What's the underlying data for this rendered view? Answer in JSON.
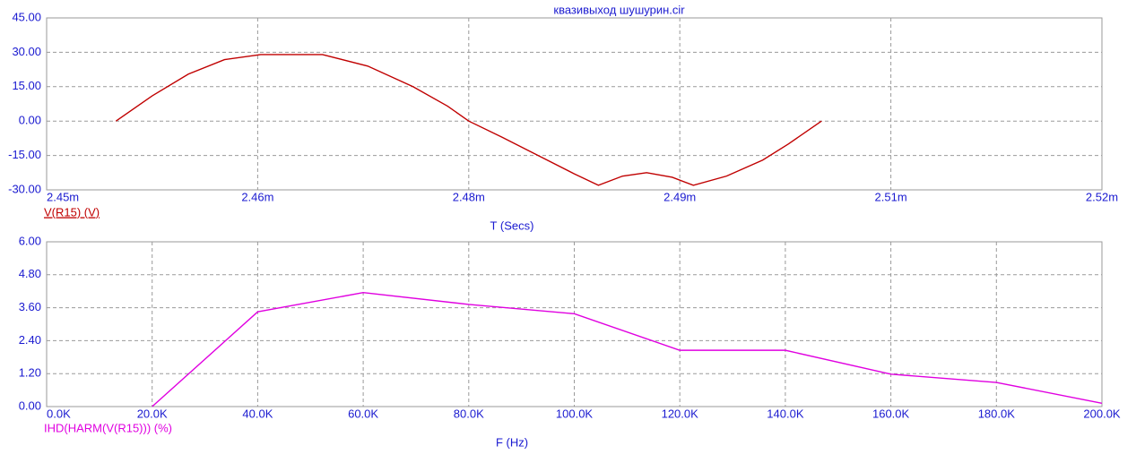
{
  "chart_data": [
    {
      "type": "line",
      "title": "квазивыход шушурин.cir",
      "x_label": "T (Secs)",
      "x": [
        0.0024546,
        0.002457,
        0.0024594,
        0.0024618,
        0.0024642,
        0.0024683,
        0.0024713,
        0.0024743,
        0.0024766,
        0.002478,
        0.0024802,
        0.0024826,
        0.002485,
        0.0024866,
        0.0024882,
        0.0024898,
        0.0024915,
        0.0024929,
        0.0024951,
        0.0024975,
        0.0024992,
        0.0025014
      ],
      "series": [
        {
          "name": "V(R15) (V)",
          "color": "#c00000",
          "values": [
            0,
            11,
            20.5,
            26.8,
            29,
            29,
            24,
            15,
            6.5,
            0,
            -7,
            -15,
            -23,
            -28,
            -24,
            -22.5,
            -24.5,
            -28,
            -24,
            -17,
            -10,
            0
          ]
        }
      ],
      "xlim": [
        0.00245,
        0.00252
      ],
      "xticks": [
        {
          "value": 0.00245,
          "label": "2.45m"
        },
        {
          "value": 0.002464,
          "label": "2.46m"
        },
        {
          "value": 0.002478,
          "label": "2.48m"
        },
        {
          "value": 0.002492,
          "label": "2.49m"
        },
        {
          "value": 0.002506,
          "label": "2.51m"
        },
        {
          "value": 0.00252,
          "label": "2.52m"
        }
      ],
      "ylim": [
        -30,
        45
      ],
      "yticks": [
        {
          "value": -30,
          "label": "-30.00"
        },
        {
          "value": -15,
          "label": "-15.00"
        },
        {
          "value": 0,
          "label": "0.00"
        },
        {
          "value": 15,
          "label": "15.00"
        },
        {
          "value": 30,
          "label": "30.00"
        },
        {
          "value": 45,
          "label": "45.00"
        }
      ],
      "grid": true
    },
    {
      "type": "line",
      "x_label": "F (Hz)",
      "x": [
        20000,
        40000,
        60000,
        80000,
        100000,
        120000,
        140000,
        160000,
        180000,
        200000
      ],
      "series": [
        {
          "name": "IHD(HARM(V(R15))) (%)",
          "color": "#e000e0",
          "values": [
            0,
            3.45,
            4.15,
            3.72,
            3.38,
            2.05,
            2.05,
            1.18,
            0.88,
            0.12
          ]
        }
      ],
      "xlim": [
        0,
        200000
      ],
      "xticks": [
        {
          "value": 0,
          "label": "0.0K"
        },
        {
          "value": 20000,
          "label": "20.0K"
        },
        {
          "value": 40000,
          "label": "40.0K"
        },
        {
          "value": 60000,
          "label": "60.0K"
        },
        {
          "value": 80000,
          "label": "80.0K"
        },
        {
          "value": 100000,
          "label": "100.0K"
        },
        {
          "value": 120000,
          "label": "120.0K"
        },
        {
          "value": 140000,
          "label": "140.0K"
        },
        {
          "value": 160000,
          "label": "160.0K"
        },
        {
          "value": 180000,
          "label": "180.0K"
        },
        {
          "value": 200000,
          "label": "200.0K"
        }
      ],
      "ylim": [
        0,
        6
      ],
      "yticks": [
        {
          "value": 0,
          "label": "0.00"
        },
        {
          "value": 1.2,
          "label": "1.20"
        },
        {
          "value": 2.4,
          "label": "2.40"
        },
        {
          "value": 3.6,
          "label": "3.60"
        },
        {
          "value": 4.8,
          "label": "4.80"
        },
        {
          "value": 6,
          "label": "6.00"
        }
      ],
      "grid": true
    }
  ]
}
